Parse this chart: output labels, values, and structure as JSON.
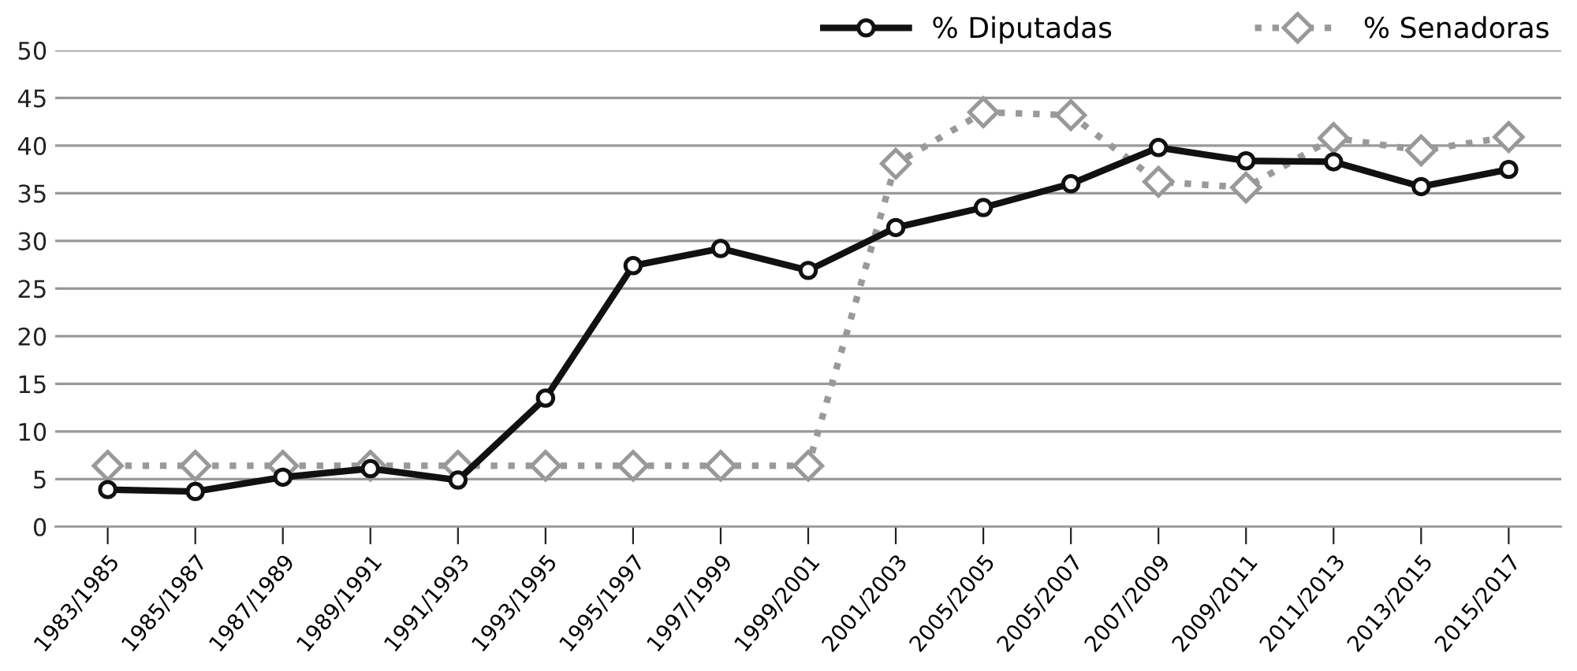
{
  "chart_data": {
    "type": "line",
    "categories": [
      "1983/1985",
      "1985/1987",
      "1987/1989",
      "1989/1991",
      "1991/1993",
      "1993/1995",
      "1995/1997",
      "1997/1999",
      "1999/2001",
      "2001/2003",
      "2005/2005",
      "2005/2007",
      "2007/2009",
      "2009/2011",
      "2011/2013",
      "2013/2015",
      "2015/2017"
    ],
    "series": [
      {
        "name": "% Diputadas",
        "color": "#111111",
        "marker": "circle",
        "line_style": "solid",
        "values": [
          3.9,
          3.7,
          5.2,
          6.1,
          4.9,
          13.5,
          27.4,
          29.2,
          26.9,
          31.4,
          33.5,
          36.0,
          39.8,
          38.4,
          38.3,
          35.7,
          37.5
        ]
      },
      {
        "name": "% Senadoras",
        "color": "#999999",
        "marker": "diamond",
        "line_style": "dotted",
        "values": [
          6.4,
          6.4,
          6.4,
          6.4,
          6.4,
          6.4,
          6.4,
          6.4,
          6.4,
          38.1,
          43.5,
          43.2,
          36.2,
          35.6,
          40.8,
          39.5,
          40.9
        ]
      }
    ],
    "ylim": [
      0,
      50
    ],
    "yticks": [
      0,
      5,
      10,
      15,
      20,
      25,
      30,
      35,
      40,
      45,
      50
    ],
    "grid": "y",
    "legend": "top right"
  }
}
